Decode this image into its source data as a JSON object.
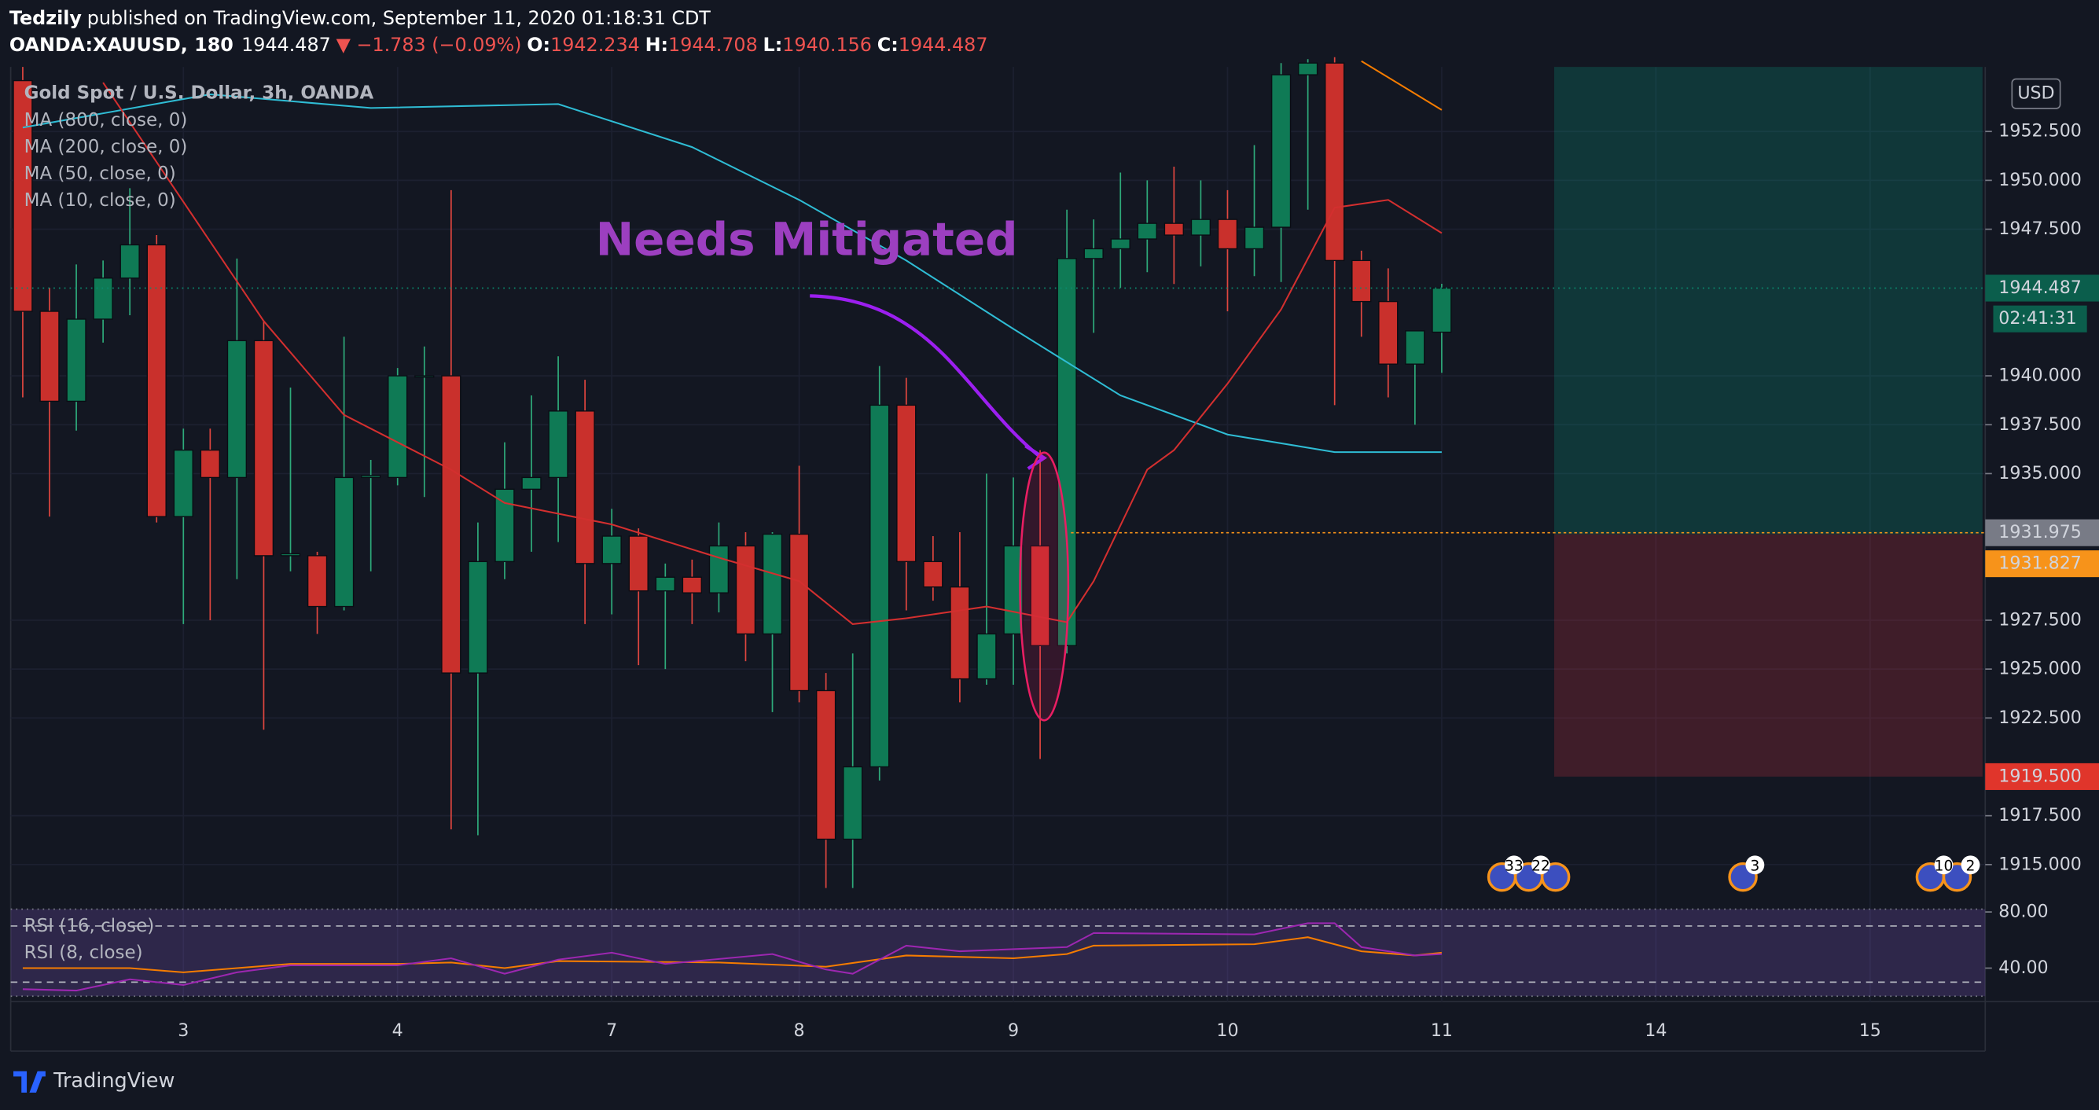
{
  "header": {
    "publisher": "Tedzily",
    "published": "published on TradingView.com, September 11, 2020 01:18:31 CDT",
    "symbol": "OANDA:XAUUSD, 180",
    "last": "1944.487",
    "change": "▼ −1.783 (−0.09%)",
    "ohlc": [
      {
        "label": "O:",
        "value": "1942.234"
      },
      {
        "label": "H:",
        "value": "1944.708"
      },
      {
        "label": "L:",
        "value": "1940.156"
      },
      {
        "label": "C:",
        "value": "1944.487"
      }
    ]
  },
  "chart_data": {
    "type": "candlestick",
    "title": "Gold Spot / U.S. Dollar, 3h, OANDA",
    "currency": "USD",
    "up_color": "#0f7a55",
    "down_color": "#c9302c",
    "open": [
      1955.1,
      1943.3,
      1938.7,
      1942.9,
      1945.0,
      1946.7,
      1932.8,
      1936.2,
      1934.8,
      1941.8,
      1930.8,
      1930.8,
      1928.2,
      1934.8,
      1934.8,
      1940.0,
      1940.0,
      1924.8,
      1930.5,
      1934.2,
      1934.8,
      1938.2,
      1930.4,
      1931.8,
      1929.0,
      1929.7,
      1928.9,
      1931.3,
      1926.8,
      1931.9,
      1923.9,
      1916.3,
      1920.0,
      1938.5,
      1930.5,
      1929.2,
      1924.5,
      1926.8,
      1931.3,
      1926.2,
      1946.0,
      1946.5,
      1947.0,
      1947.8,
      1947.2,
      1948.0,
      1946.5,
      1947.6,
      1955.4,
      1956.0,
      1945.9,
      1943.8,
      1940.6,
      1942.234
    ],
    "high": [
      1955.8,
      1944.5,
      1945.7,
      1945.9,
      1949.6,
      1947.2,
      1937.3,
      1937.3,
      1946.0,
      1942.8,
      1939.4,
      1931.0,
      1942.0,
      1935.7,
      1940.4,
      1941.5,
      1949.5,
      1932.5,
      1936.6,
      1939.0,
      1941.0,
      1939.8,
      1933.2,
      1932.2,
      1930.4,
      1930.6,
      1932.5,
      1932.0,
      1932.0,
      1935.4,
      1924.8,
      1925.8,
      1940.5,
      1939.9,
      1931.8,
      1932.0,
      1935.0,
      1934.8,
      1936.2,
      1948.5,
      1948.0,
      1950.4,
      1950.0,
      1950.7,
      1950.0,
      1949.5,
      1951.8,
      1956.0,
      1956.2,
      1956.3,
      1946.4,
      1945.5,
      1942.3,
      1944.708
    ],
    "low": [
      1938.9,
      1932.8,
      1937.2,
      1941.7,
      1943.1,
      1932.5,
      1927.3,
      1927.5,
      1929.6,
      1921.9,
      1930.0,
      1926.8,
      1928.0,
      1930.0,
      1934.4,
      1933.8,
      1916.8,
      1916.5,
      1929.6,
      1931.0,
      1931.5,
      1927.3,
      1927.8,
      1925.2,
      1925.0,
      1927.3,
      1927.9,
      1925.4,
      1922.8,
      1923.3,
      1913.8,
      1913.8,
      1919.3,
      1928.0,
      1928.5,
      1923.3,
      1924.2,
      1924.2,
      1920.4,
      1925.8,
      1942.2,
      1944.5,
      1945.3,
      1944.7,
      1945.6,
      1943.3,
      1945.1,
      1944.8,
      1948.5,
      1938.5,
      1942.0,
      1938.9,
      1937.5,
      1940.156
    ],
    "close": [
      1943.3,
      1938.7,
      1942.9,
      1945.0,
      1946.7,
      1932.8,
      1936.2,
      1934.8,
      1941.8,
      1930.8,
      1930.9,
      1928.2,
      1934.8,
      1934.9,
      1940.0,
      1940.0,
      1924.8,
      1930.5,
      1934.2,
      1934.8,
      1938.2,
      1930.4,
      1931.8,
      1929.0,
      1929.7,
      1928.9,
      1931.3,
      1926.8,
      1931.9,
      1923.9,
      1916.3,
      1920.0,
      1938.5,
      1930.5,
      1929.2,
      1924.5,
      1926.8,
      1931.3,
      1926.2,
      1946.0,
      1946.5,
      1947.0,
      1947.8,
      1947.2,
      1948.0,
      1946.5,
      1947.6,
      1955.4,
      1956.0,
      1945.9,
      1943.8,
      1940.6,
      1942.3,
      1944.487
    ],
    "xlim": [
      -0.45,
      73.2
    ],
    "xticks": [
      {
        "value": 6,
        "label": "3"
      },
      {
        "value": 14,
        "label": "4"
      },
      {
        "value": 22,
        "label": "7"
      },
      {
        "value": 29,
        "label": "8"
      },
      {
        "value": 37,
        "label": "9"
      },
      {
        "value": 45,
        "label": "10"
      },
      {
        "value": 53,
        "label": "11"
      },
      {
        "value": 61,
        "label": "14"
      },
      {
        "value": 69,
        "label": "15"
      }
    ],
    "ylim": [
      1913.2,
      1955.8
    ],
    "yticks": [
      {
        "value": 1915,
        "label": "1915.000"
      },
      {
        "value": 1917.5,
        "label": "1917.500"
      },
      {
        "value": 1922.5,
        "label": "1922.500"
      },
      {
        "value": 1925,
        "label": "1925.000"
      },
      {
        "value": 1927.5,
        "label": "1927.500"
      },
      {
        "value": 1935,
        "label": "1935.000"
      },
      {
        "value": 1937.5,
        "label": "1937.500"
      },
      {
        "value": 1940,
        "label": "1940.000"
      },
      {
        "value": 1947.5,
        "label": "1947.500"
      },
      {
        "value": 1950,
        "label": "1950.000"
      },
      {
        "value": 1952.5,
        "label": "1952.500"
      }
    ],
    "overlays": [
      {
        "name": "MA (800, close, 0)",
        "color": "#9598a1",
        "x": [],
        "values": []
      },
      {
        "name": "MA (200, close, 0)",
        "color": "#2fbcd4",
        "x": [
          0,
          7,
          13,
          20,
          25,
          29,
          33,
          37,
          41,
          45,
          49,
          53
        ],
        "values": [
          1952.7,
          1954.4,
          1953.7,
          1953.9,
          1951.7,
          1949.0,
          1945.9,
          1942.4,
          1939.0,
          1937.0,
          1936.1,
          1936.1
        ]
      },
      {
        "name": "MA (50, close, 0)",
        "color": "#d32f2f",
        "x": [
          3,
          9,
          12,
          16,
          18,
          22,
          26,
          29,
          31,
          33,
          36,
          39,
          40,
          42,
          43,
          45,
          47,
          49,
          51,
          53
        ],
        "values": [
          1955.0,
          1942.8,
          1938.0,
          1935.2,
          1933.5,
          1932.4,
          1930.7,
          1929.5,
          1927.3,
          1927.6,
          1928.2,
          1927.4,
          1929.5,
          1935.2,
          1936.2,
          1939.6,
          1943.4,
          1948.6,
          1949.0,
          1947.3
        ]
      },
      {
        "name": "MA (10, close, 0)",
        "color": "#f57c00",
        "x": [
          50,
          53
        ],
        "values": [
          1956.1,
          1953.6
        ]
      }
    ],
    "price_labels": [
      {
        "value": 1944.487,
        "label": "1944.487",
        "color": "#0b5e4c"
      },
      {
        "value": 1931.975,
        "label": "1931.975",
        "color": "#787b86"
      },
      {
        "value": 1931.827,
        "label": "1931.827",
        "color": "#f7931a"
      },
      {
        "value": 1919.5,
        "label": "1919.500",
        "color": "#e0352b"
      }
    ],
    "countdown": "02:41:31",
    "position": {
      "x_start": 57.2,
      "x_end": 73.2,
      "entry": 1931.9,
      "target": 1955.8,
      "stop": 1919.5
    },
    "annotation": "Needs Mitigated",
    "events": [
      "33",
      "22",
      "3",
      "10",
      "2"
    ],
    "rsi": {
      "ylim": [
        20,
        82
      ],
      "yticks": [
        {
          "value": 80,
          "label": "80.00"
        },
        {
          "value": 40,
          "label": "40.00"
        }
      ],
      "bands": [
        70,
        30
      ],
      "series": [
        {
          "name": "RSI (16, close)",
          "color": "#f57c00",
          "x": [
            0,
            4,
            6,
            10,
            14,
            16,
            18,
            20,
            26,
            30,
            33,
            37,
            39,
            40,
            46,
            48,
            50,
            52,
            53
          ],
          "values": [
            40,
            40,
            37,
            43,
            43,
            44,
            40,
            45,
            44,
            41,
            49,
            47,
            50,
            56,
            57,
            62,
            52,
            49,
            51
          ]
        },
        {
          "name": "RSI (8, close)",
          "color": "#9c27b0",
          "x": [
            0,
            2,
            4,
            6,
            8,
            10,
            14,
            16,
            18,
            20,
            22,
            24,
            28,
            30,
            31,
            33,
            35,
            39,
            40,
            46,
            48,
            49,
            50,
            52,
            53
          ],
          "values": [
            25,
            24,
            32,
            28,
            37,
            42,
            42,
            47,
            36,
            46,
            51,
            43,
            50,
            39,
            36,
            56,
            52,
            55,
            65,
            64,
            72,
            72,
            55,
            49,
            50
          ]
        }
      ]
    },
    "brand": "TradingView"
  }
}
